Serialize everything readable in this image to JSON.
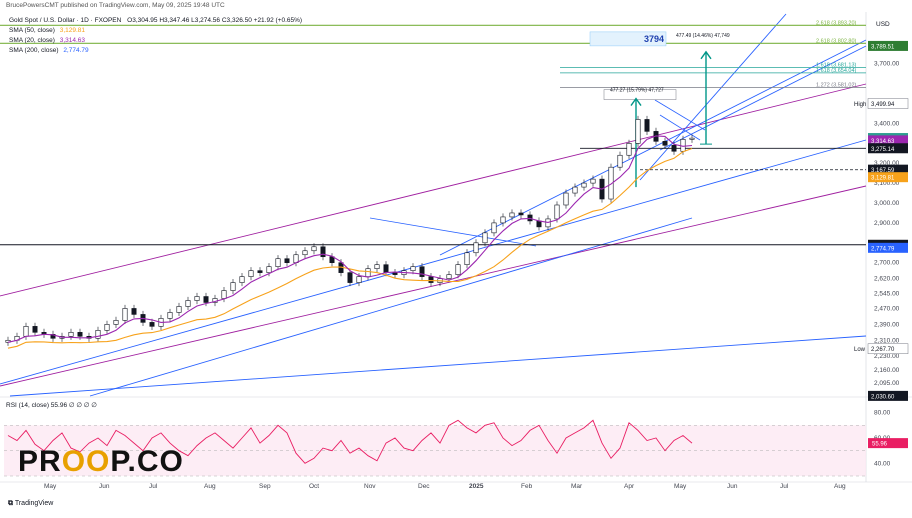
{
  "header": {
    "publisher": "BrucePowersCMT published on TradingView.com, May 09, 2025 19:48 UTC",
    "symbol": "Gold Spot / U.S. Dollar · 1D · FXOPEN",
    "ohlc": "O3,304.95 H3,347.46 L3,274.56 C3,326.50 +21.92 (+0.65%)"
  },
  "indicators": [
    {
      "label": "SMA (50, close)",
      "value": "3,129.81",
      "color": "#f7a21b"
    },
    {
      "label": "SMA (20, close)",
      "value": "3,314.63",
      "color": "#9c27b0"
    },
    {
      "label": "SMA (200, close)",
      "value": "2,774.79",
      "color": "#2962ff"
    }
  ],
  "brand": {
    "prefix": "PR",
    "middle": "OO",
    "suffix": "P.CO"
  },
  "footer": {
    "tradingview": "TradingView"
  },
  "chart_data": [
    {
      "type": "candlestick",
      "currency": "USD",
      "ylim": [
        2030,
        3960
      ],
      "y_axis_labels": [
        "3,700.00",
        "3,500.00",
        "3,400.00",
        "3,300.00",
        "3,200.00",
        "3,100.00",
        "3,000.00",
        "2,900.00",
        "2,800.00",
        "2,700.00",
        "2,620.00",
        "2,545.00",
        "2,470.00",
        "2,390.00",
        "2,310.00",
        "2,230.00",
        "2,160.00",
        "2,095.00"
      ],
      "x_axis_labels": [
        "May",
        "Jun",
        "Jul",
        "Aug",
        "Sep",
        "Oct",
        "Nov",
        "Dec",
        "2025",
        "Feb",
        "Mar",
        "Apr",
        "May",
        "Jun",
        "Jul",
        "Aug"
      ],
      "price_tags": [
        {
          "value": "3,789.51",
          "bg": "#2e7d32"
        },
        {
          "value": "3,499.94",
          "bg": "#ffffff",
          "label": "High"
        },
        {
          "value": "3,326.50",
          "bg": "#2e9e8f",
          "sub": "01:11:48"
        },
        {
          "value": "3,314.63",
          "bg": "#9c27b0"
        },
        {
          "value": "3,275.14",
          "bg": "#131722"
        },
        {
          "value": "3,167.59",
          "bg": "#131722"
        },
        {
          "value": "3,129.81",
          "bg": "#f7a21b"
        },
        {
          "value": "2,790.06",
          "bg": "#131722"
        },
        {
          "value": "2,774.79",
          "bg": "#2962ff"
        },
        {
          "value": "2,267.70",
          "bg": "#ffffff",
          "label": "Low"
        },
        {
          "value": "2,030.60",
          "bg": "#131722"
        }
      ],
      "fib_levels": [
        {
          "ratio": "2.618 (3,893.20)",
          "value": 3893.2
        },
        {
          "ratio": "2.618 (3,802.80)",
          "value": 3802.8
        },
        {
          "ratio": "1.618 (3,681.13)",
          "value": 3681.13
        },
        {
          "ratio": "1.618 (3,654.04)",
          "value": 3654.04
        },
        {
          "ratio": "1.272 (3,581.02)",
          "value": 3581.02
        }
      ],
      "annotations": [
        {
          "text": "3794"
        },
        {
          "text": "477.49 (14.46%) 47,749"
        },
        {
          "text": "477.27 (15.79%) 47,727"
        }
      ],
      "close_series_approx": [
        2310,
        2330,
        2380,
        2350,
        2340,
        2320,
        2330,
        2350,
        2330,
        2320,
        2360,
        2390,
        2410,
        2470,
        2440,
        2400,
        2380,
        2420,
        2450,
        2480,
        2510,
        2530,
        2500,
        2520,
        2560,
        2600,
        2630,
        2660,
        2650,
        2680,
        2720,
        2700,
        2740,
        2760,
        2780,
        2730,
        2700,
        2650,
        2600,
        2630,
        2670,
        2690,
        2650,
        2640,
        2660,
        2680,
        2630,
        2600,
        2620,
        2640,
        2690,
        2750,
        2800,
        2850,
        2900,
        2930,
        2950,
        2940,
        2910,
        2880,
        2920,
        2990,
        3050,
        3080,
        3100,
        3120,
        3020,
        3180,
        3240,
        3300,
        3420,
        3360,
        3310,
        3290,
        3260,
        3320,
        3326
      ]
    },
    {
      "type": "line",
      "name": "RSI (14, close)",
      "value_label": "RSI (14, close) 55.96 ∅ ∅ ∅ ∅",
      "ylim": [
        30,
        90
      ],
      "y_axis_labels": [
        "80.00",
        "60.00",
        "40.00"
      ],
      "current": "55.96",
      "values": [
        62,
        58,
        66,
        55,
        50,
        58,
        64,
        52,
        49,
        56,
        60,
        54,
        66,
        62,
        56,
        50,
        60,
        64,
        56,
        50,
        46,
        54,
        60,
        64,
        58,
        52,
        60,
        68,
        56,
        62,
        70,
        64,
        48,
        40,
        44,
        52,
        50,
        58,
        48,
        52,
        46,
        42,
        56,
        60,
        52,
        50,
        58,
        64,
        56,
        70,
        74,
        68,
        64,
        70,
        72,
        60,
        54,
        58,
        66,
        70,
        58,
        48,
        60,
        64,
        68,
        74,
        56,
        44,
        52,
        72,
        66,
        58,
        60,
        50,
        58,
        62,
        56
      ]
    }
  ]
}
